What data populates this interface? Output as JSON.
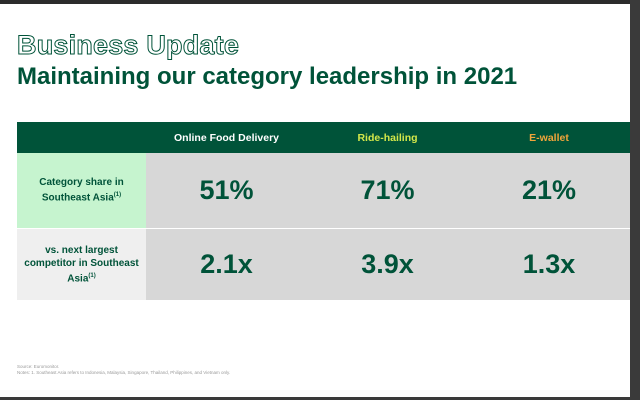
{
  "title": "Business Update",
  "subtitle": "Maintaining our category leadership in 2021",
  "table": {
    "columns": [
      {
        "label": "Online Food Delivery",
        "color": "#ffffff"
      },
      {
        "label": "Ride-hailing",
        "color": "#d4e84a"
      },
      {
        "label": "E-wallet",
        "color": "#f2a53a"
      }
    ],
    "rows": [
      {
        "label": "Category share in Southeast Asia",
        "note": "(1)",
        "values": [
          "51%",
          "71%",
          "21%"
        ]
      },
      {
        "label": "vs. next largest competitor in Southeast Asia",
        "note": "(1)",
        "values": [
          "2.1x",
          "3.9x",
          "1.3x"
        ]
      }
    ]
  },
  "footnotes": {
    "source": "Source: Euromonitor.",
    "note": "Notes: 1. Southeast Asia refers to Indonesia, Malaysia, Singapore, Thailand, Philippines, and Vietnam only."
  },
  "colors": {
    "brand_green": "#005339",
    "highlight": "#c6f4cf"
  }
}
